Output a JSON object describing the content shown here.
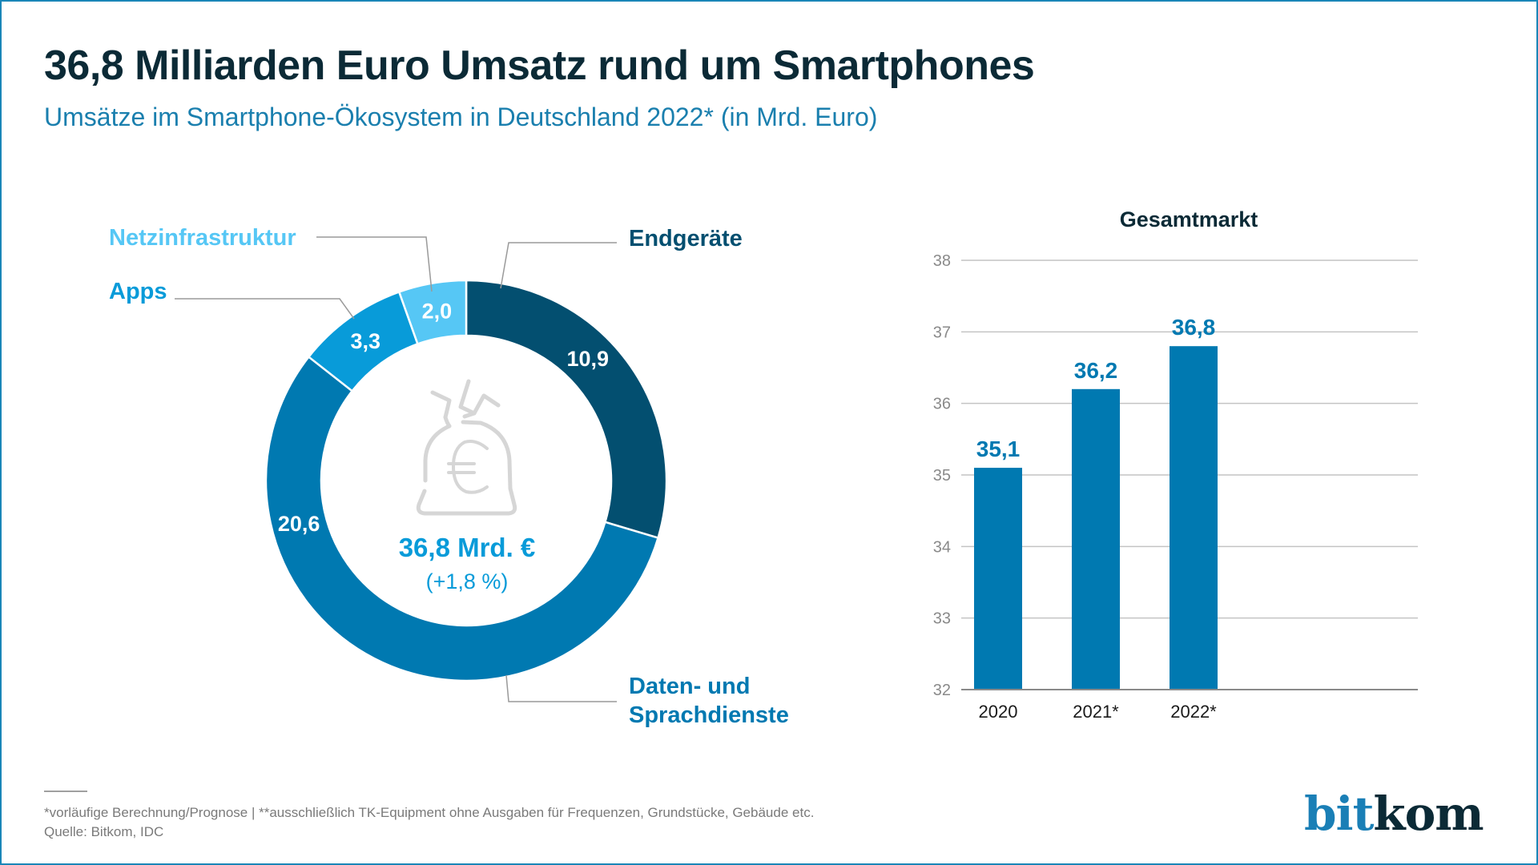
{
  "header": {
    "title": "36,8 Milliarden Euro Umsatz rund um Smartphones",
    "subtitle": "Umsätze im Smartphone-Ökosystem in Deutschland 2022* (in Mrd. Euro)"
  },
  "colors": {
    "endgeraete": "#034f70",
    "daten": "#0079b1",
    "apps": "#089bd9",
    "netz": "#56c7f5",
    "bar": "#0079b1",
    "title": "#0b2a36",
    "accent": "#1a7fae"
  },
  "chart_data": [
    {
      "type": "pie",
      "variant": "donut",
      "title": "Umsätze im Smartphone-Ökosystem in Deutschland 2022* (in Mrd. Euro)",
      "slices": [
        {
          "key": "endgeraete",
          "label": "Endgeräte",
          "value": 10.9,
          "value_label": "10,9",
          "color": "#034f70"
        },
        {
          "key": "daten",
          "label": "Daten- und Sprachdienste",
          "label_lines": [
            "Daten- und",
            "Sprachdienste"
          ],
          "value": 20.6,
          "value_label": "20,6",
          "color": "#0079b1"
        },
        {
          "key": "apps",
          "label": "Apps",
          "value": 3.3,
          "value_label": "3,3",
          "color": "#089bd9"
        },
        {
          "key": "netz",
          "label": "Netzinfrastruktur",
          "value": 2.0,
          "value_label": "2,0",
          "color": "#56c7f5"
        }
      ],
      "center": {
        "icon": "money-bag-euro-icon",
        "total_label": "36,8 Mrd. €",
        "change_label": "(+1,8 %)"
      },
      "start": "top, clockwise"
    },
    {
      "type": "bar",
      "title": "Gesamtmarkt",
      "categories": [
        "2020",
        "2021*",
        "2022*"
      ],
      "values": [
        35.1,
        36.2,
        36.8
      ],
      "value_labels": [
        "35,1",
        "36,2",
        "36,8"
      ],
      "ylim": [
        32,
        38
      ],
      "yticks": [
        32,
        33,
        34,
        35,
        36,
        37,
        38
      ],
      "xlabel": "",
      "ylabel": "",
      "grid": true,
      "color": "#0079b1"
    }
  ],
  "footer": {
    "footnote": "*vorläufige Berechnung/Prognose | **ausschließlich TK-Equipment ohne Ausgaben für Frequenzen, Grundstücke, Gebäude etc.",
    "source": "Quelle: Bitkom, IDC",
    "logo_part1": "bit",
    "logo_part2": "kom"
  }
}
